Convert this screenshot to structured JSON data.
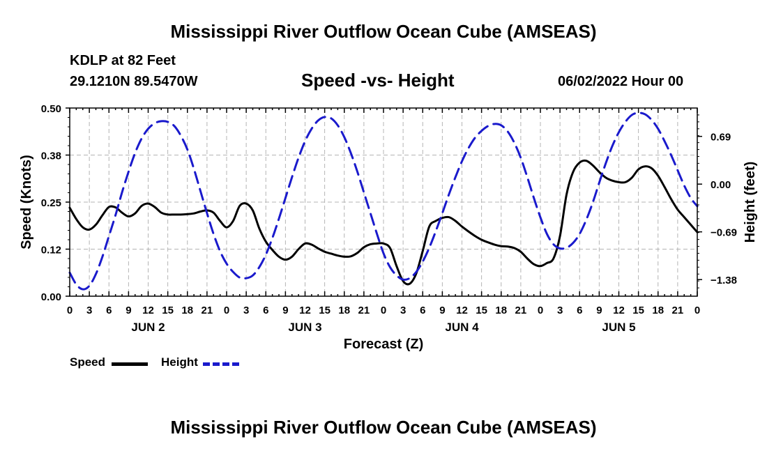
{
  "header": {
    "title_top": "Mississippi River Outflow Ocean Cube (AMSEAS)",
    "station": "KDLP at 82 Feet",
    "coords": "29.1210N  89.5470W",
    "subtitle": "Speed -vs- Height",
    "datetime": "06/02/2022 Hour 00",
    "title_bottom": "Mississippi River Outflow Ocean Cube (AMSEAS)"
  },
  "legend": {
    "speed_label": "Speed",
    "height_label": "Height"
  },
  "colors": {
    "speed": "#000000",
    "height": "#1a1acc",
    "grid": "#b4b4b4"
  },
  "chart_data": {
    "type": "line",
    "xlabel": "Forecast (Z)",
    "ylabel_left": "Speed (Knots)",
    "ylabel_right": "Height (feet)",
    "x_range": [
      0,
      96
    ],
    "y_left_range": [
      0,
      0.5
    ],
    "y_left_ticks": [
      0,
      0.125,
      0.25,
      0.375,
      0.5
    ],
    "y_left_tick_labels": [
      "0.00",
      "0.12",
      "0.25",
      "0.38",
      "0.50"
    ],
    "y_right_range": [
      -1.62,
      1.1
    ],
    "y_right_ticks": [
      -1.38,
      -0.69,
      0.0,
      0.69
    ],
    "y_right_tick_labels": [
      "−1.38",
      "−0.69",
      "0.00",
      "0.69"
    ],
    "x_ticks": [
      0,
      3,
      6,
      9,
      12,
      15,
      18,
      21,
      24,
      27,
      30,
      33,
      36,
      39,
      42,
      45,
      48,
      51,
      54,
      57,
      60,
      63,
      66,
      69,
      72,
      75,
      78,
      81,
      84,
      87,
      90,
      93,
      96
    ],
    "x_tick_labels": [
      "0",
      "3",
      "6",
      "9",
      "12",
      "15",
      "18",
      "21",
      "0",
      "3",
      "6",
      "9",
      "12",
      "15",
      "18",
      "21",
      "0",
      "3",
      "6",
      "9",
      "12",
      "15",
      "18",
      "21",
      "0",
      "3",
      "6",
      "9",
      "12",
      "15",
      "18",
      "21",
      "0"
    ],
    "day_labels": [
      {
        "x": 12,
        "label": "JUN 2"
      },
      {
        "x": 36,
        "label": "JUN 3"
      },
      {
        "x": 60,
        "label": "JUN 4"
      },
      {
        "x": 84,
        "label": "JUN 5"
      }
    ],
    "grid": true,
    "series": [
      {
        "name": "Speed",
        "axis": "left",
        "style": "solid",
        "x": [
          0,
          1,
          2,
          3,
          4,
          5,
          6,
          7,
          8,
          9,
          10,
          11,
          12,
          13,
          14,
          15,
          16,
          17,
          18,
          19,
          20,
          21,
          22,
          23,
          24,
          25,
          26,
          27,
          28,
          29,
          30,
          31,
          32,
          33,
          34,
          35,
          36,
          37,
          38,
          39,
          40,
          41,
          42,
          43,
          44,
          45,
          46,
          47,
          48,
          49,
          50,
          51,
          52,
          53,
          54,
          55,
          56,
          57,
          58,
          59,
          60,
          61,
          62,
          63,
          64,
          65,
          66,
          67,
          68,
          69,
          70,
          71,
          72,
          73,
          74,
          75,
          76,
          77,
          78,
          79,
          80,
          81,
          82,
          83,
          84,
          85,
          86,
          87,
          88,
          89,
          90,
          91,
          92,
          93,
          94,
          95,
          96
        ],
        "values": [
          0.235,
          0.205,
          0.183,
          0.177,
          0.19,
          0.215,
          0.237,
          0.236,
          0.222,
          0.212,
          0.22,
          0.24,
          0.246,
          0.237,
          0.222,
          0.217,
          0.217,
          0.217,
          0.218,
          0.22,
          0.225,
          0.228,
          0.222,
          0.2,
          0.183,
          0.2,
          0.24,
          0.246,
          0.228,
          0.18,
          0.145,
          0.123,
          0.105,
          0.097,
          0.105,
          0.125,
          0.14,
          0.137,
          0.127,
          0.118,
          0.113,
          0.108,
          0.105,
          0.106,
          0.115,
          0.13,
          0.138,
          0.14,
          0.14,
          0.128,
          0.08,
          0.04,
          0.033,
          0.06,
          0.12,
          0.185,
          0.2,
          0.208,
          0.21,
          0.2,
          0.185,
          0.172,
          0.16,
          0.15,
          0.143,
          0.137,
          0.133,
          0.132,
          0.128,
          0.118,
          0.1,
          0.085,
          0.08,
          0.088,
          0.1,
          0.16,
          0.27,
          0.33,
          0.355,
          0.36,
          0.348,
          0.33,
          0.315,
          0.307,
          0.303,
          0.303,
          0.315,
          0.337,
          0.345,
          0.34,
          0.32,
          0.29,
          0.258,
          0.23,
          0.21,
          0.19,
          0.17
        ]
      },
      {
        "name": "Height",
        "axis": "right",
        "style": "dashed",
        "x": [
          0,
          1,
          2,
          3,
          4,
          5,
          6,
          7,
          8,
          9,
          10,
          11,
          12,
          13,
          14,
          15,
          16,
          17,
          18,
          19,
          20,
          21,
          22,
          23,
          24,
          25,
          26,
          27,
          28,
          29,
          30,
          31,
          32,
          33,
          34,
          35,
          36,
          37,
          38,
          39,
          40,
          41,
          42,
          43,
          44,
          45,
          46,
          47,
          48,
          49,
          50,
          51,
          52,
          53,
          54,
          55,
          56,
          57,
          58,
          59,
          60,
          61,
          62,
          63,
          64,
          65,
          66,
          67,
          68,
          69,
          70,
          71,
          72,
          73,
          74,
          75,
          76,
          77,
          78,
          79,
          80,
          81,
          82,
          83,
          84,
          85,
          86,
          87,
          88,
          89,
          90,
          91,
          92,
          93,
          94,
          95,
          96
        ],
        "values": [
          -1.28,
          -1.45,
          -1.52,
          -1.47,
          -1.3,
          -1.05,
          -0.75,
          -0.45,
          -0.12,
          0.18,
          0.45,
          0.66,
          0.8,
          0.88,
          0.91,
          0.9,
          0.84,
          0.7,
          0.5,
          0.22,
          -0.1,
          -0.42,
          -0.72,
          -0.97,
          -1.15,
          -1.27,
          -1.35,
          -1.36,
          -1.32,
          -1.2,
          -1.02,
          -0.78,
          -0.5,
          -0.2,
          0.1,
          0.38,
          0.62,
          0.8,
          0.92,
          0.97,
          0.95,
          0.85,
          0.68,
          0.45,
          0.18,
          -0.12,
          -0.42,
          -0.72,
          -1.0,
          -1.2,
          -1.32,
          -1.38,
          -1.36,
          -1.27,
          -1.12,
          -0.92,
          -0.68,
          -0.42,
          -0.15,
          0.1,
          0.33,
          0.52,
          0.67,
          0.77,
          0.84,
          0.87,
          0.85,
          0.76,
          0.6,
          0.38,
          0.1,
          -0.2,
          -0.48,
          -0.72,
          -0.87,
          -0.93,
          -0.92,
          -0.85,
          -0.72,
          -0.52,
          -0.27,
          0.02,
          0.3,
          0.55,
          0.75,
          0.9,
          1.0,
          1.03,
          1.01,
          0.93,
          0.8,
          0.62,
          0.42,
          0.2,
          -0.02,
          -0.2,
          -0.32
        ]
      }
    ]
  }
}
